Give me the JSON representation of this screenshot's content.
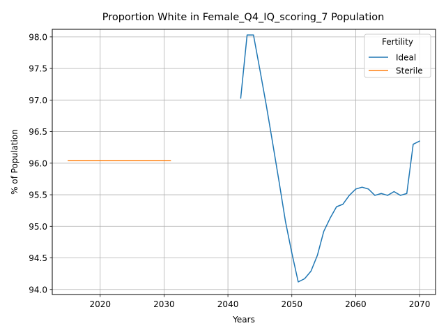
{
  "chart_data": {
    "type": "line",
    "title": "Proportion White in Female_Q4_IQ_scoring_7 Population",
    "xlabel": "Years",
    "ylabel": "% of Population",
    "xlim": [
      2012.5,
      2072.5
    ],
    "ylim": [
      93.92,
      98.12
    ],
    "xticks": [
      2020,
      2030,
      2040,
      2050,
      2060,
      2070
    ],
    "yticks": [
      94.0,
      94.5,
      95.0,
      95.5,
      96.0,
      96.5,
      97.0,
      97.5,
      98.0
    ],
    "grid": true,
    "legend": {
      "title": "Fertility",
      "placement": "upper right"
    },
    "series": [
      {
        "name": "Ideal",
        "color": "#1f77b4",
        "x": [
          2042,
          2043,
          2044,
          2045,
          2046,
          2047,
          2048,
          2049,
          2050,
          2051,
          2052,
          2053,
          2054,
          2055,
          2056,
          2057,
          2058,
          2059,
          2060,
          2061,
          2062,
          2063,
          2064,
          2065,
          2066,
          2067,
          2068,
          2069,
          2070
        ],
        "y": [
          97.03,
          98.03,
          98.03,
          97.48,
          96.92,
          96.32,
          95.71,
          95.08,
          94.58,
          94.12,
          94.17,
          94.29,
          94.54,
          94.92,
          95.13,
          95.31,
          95.35,
          95.49,
          95.59,
          95.62,
          95.59,
          95.49,
          95.52,
          95.49,
          95.55,
          95.49,
          95.52,
          96.3,
          96.35
        ]
      },
      {
        "name": "Sterile",
        "color": "#ff7f0e",
        "x": [
          2015,
          2031
        ],
        "y": [
          96.04,
          96.04
        ]
      }
    ]
  }
}
